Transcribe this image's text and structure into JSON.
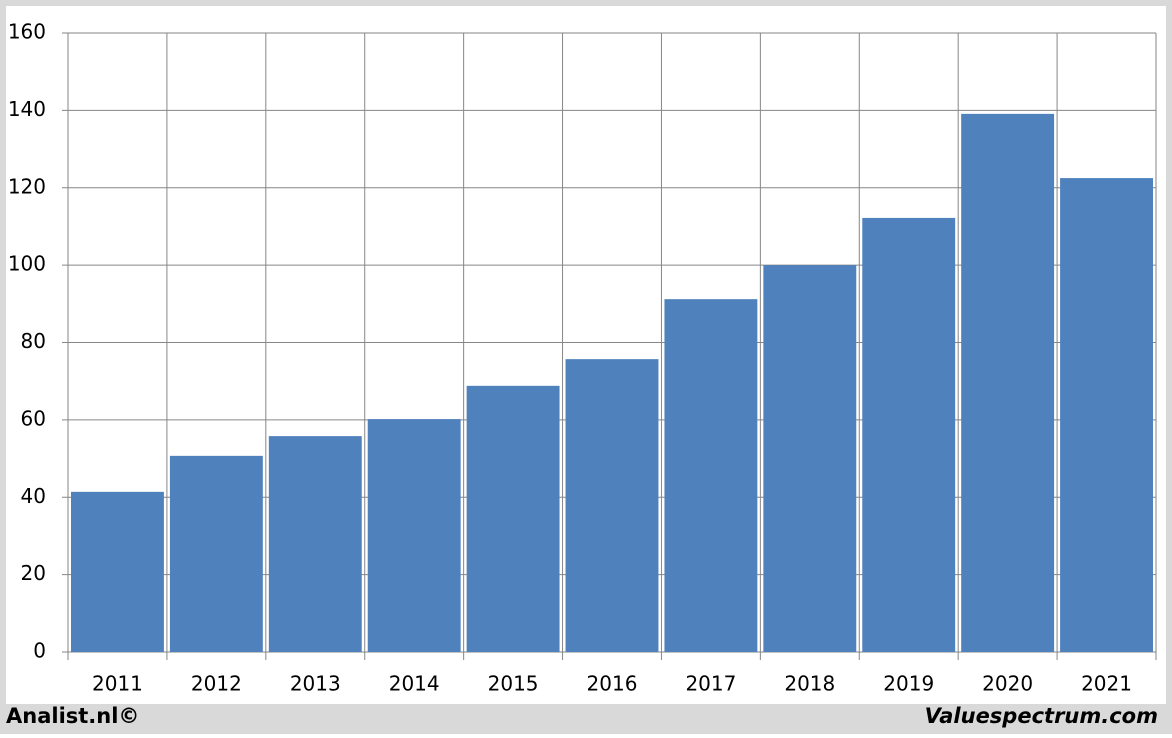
{
  "chart_data": {
    "type": "bar",
    "categories": [
      "2011",
      "2012",
      "2013",
      "2014",
      "2015",
      "2016",
      "2017",
      "2018",
      "2019",
      "2020",
      "2021"
    ],
    "values": [
      41.4,
      50.7,
      55.8,
      60.2,
      68.8,
      75.7,
      91.2,
      100,
      112.2,
      139.1,
      122.5
    ],
    "color": "#4f81bd",
    "ylim": [
      0,
      160
    ],
    "yticks": [
      0,
      20,
      40,
      60,
      80,
      100,
      120,
      140,
      160
    ],
    "grid": true,
    "annotations": [
      "Analist.nl©",
      "Valuespectrum.com"
    ]
  }
}
